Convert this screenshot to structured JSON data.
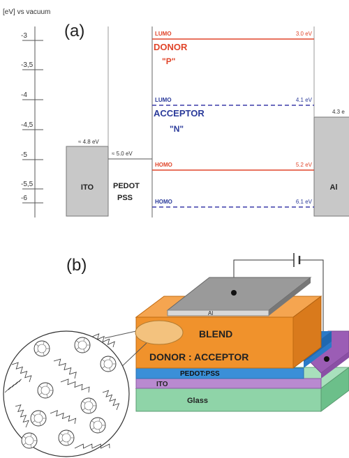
{
  "panel_a": {
    "label": "(a)",
    "axis_title": "[eV] vs vacuum",
    "axis_ticks": [
      "-3",
      "-3,5",
      "-4",
      "-4,5",
      "-5",
      "-5,5",
      "-6"
    ],
    "ito": {
      "label": "ITO",
      "level": "≈ 4.8 eV"
    },
    "pedot": {
      "label_lines": [
        "PEDOT",
        "PSS"
      ],
      "level": "≈ 5.0 eV"
    },
    "al": {
      "label": "Al",
      "level": "4.3 e"
    },
    "donor": {
      "name": "DONOR",
      "short": "\"P\"",
      "lumo": {
        "label": "LUMO",
        "value": "3.0 eV"
      },
      "homo": {
        "label": "HOMO",
        "value": "5.2 eV"
      }
    },
    "acceptor": {
      "name": "ACCEPTOR",
      "short": "\"N\"",
      "lumo": {
        "label": "LUMO",
        "value": "4.1 eV"
      },
      "homo": {
        "label": "HOMO",
        "value": "6.1 eV"
      }
    }
  },
  "panel_b": {
    "label": "(b)",
    "layers": {
      "al": "Al",
      "blend": [
        "BLEND",
        "DONOR : ACCEPTOR"
      ],
      "pedot": "PEDOT:PSS",
      "ito": "ITO",
      "glass": "Glass"
    }
  }
}
